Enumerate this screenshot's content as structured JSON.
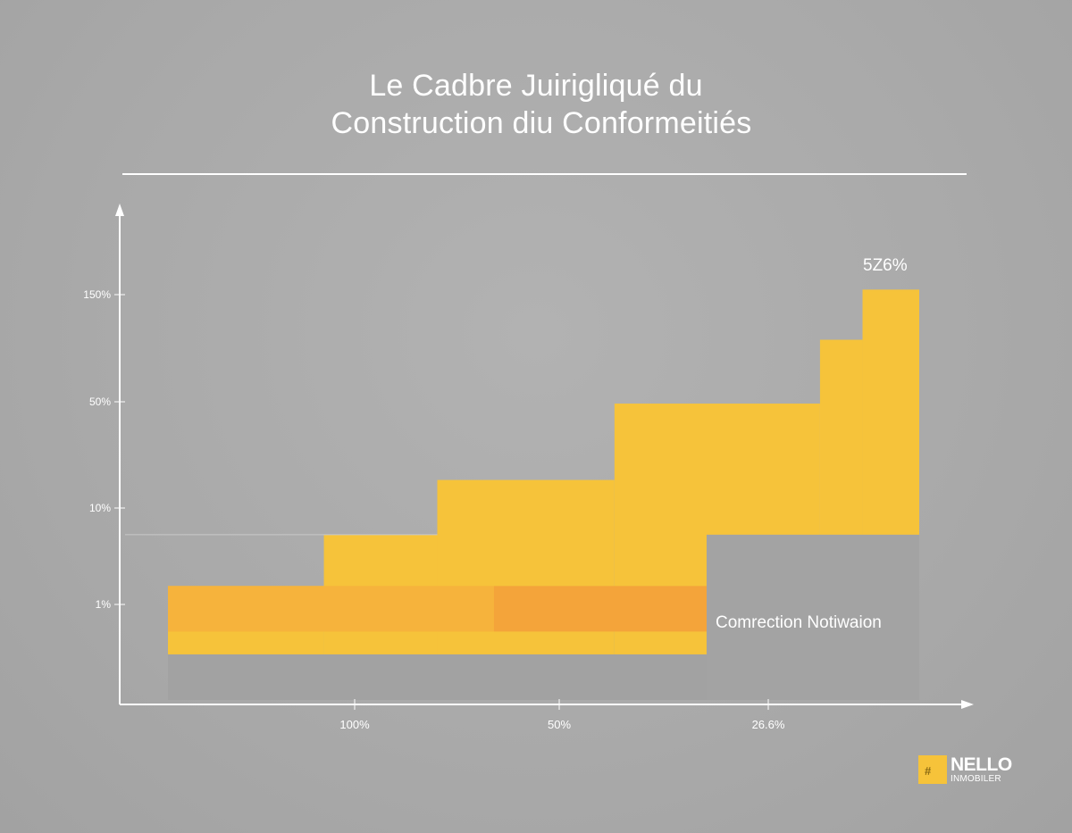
{
  "chart_data": {
    "type": "area",
    "title_lines": [
      "Le  Cadbre Juirigliqué du",
      "Construction diu Conformeitiés"
    ],
    "y_ticks": [
      "150%",
      "50%",
      "10%",
      "1%"
    ],
    "x_ticks": [
      "100%",
      "50%",
      "26.6%"
    ],
    "peak_label": "5Z6%",
    "annotation": "Comrection Notiwaion",
    "series": [
      {
        "values": [
          {
            "x_from": 0,
            "x_to": 1.1,
            "y": 1.0
          },
          {
            "x_from": 1.1,
            "x_to": 1.9,
            "y": 1.45
          },
          {
            "x_from": 1.9,
            "x_to": 3.15,
            "y": 1.93
          },
          {
            "x_from": 3.15,
            "x_to": 4.6,
            "y": 2.6
          },
          {
            "x_from": 4.6,
            "x_to": 4.9,
            "y": 3.16
          },
          {
            "x_from": 4.9,
            "x_to": 5.3,
            "y": 3.6
          }
        ],
        "base": 0.4,
        "color": "#f6c33a"
      },
      {
        "values": [
          {
            "x_from": 0,
            "x_to": 2.3,
            "y": 1.0
          },
          {
            "x_from": 2.3,
            "x_to": 3.8,
            "y": 1.0
          }
        ],
        "base": 0.6,
        "colors": [
          "#f6b33c",
          "#f4a43a"
        ]
      }
    ],
    "lower_band": {
      "x_from": 0,
      "x_to": 5.3,
      "y_top": 0.6,
      "y_base": 0,
      "color": "#a2a2a2"
    },
    "right_band": {
      "x_from": 3.8,
      "x_to": 5.3,
      "y_top": 1.45,
      "y_base": 0,
      "color": "#a3a3a3"
    },
    "reference_line_y": 1.45,
    "grid": false,
    "legend": "none"
  },
  "logo": {
    "mark": "#",
    "name": "NELLO",
    "sub": "INMOBILER",
    "accent": "#f6c33a"
  }
}
